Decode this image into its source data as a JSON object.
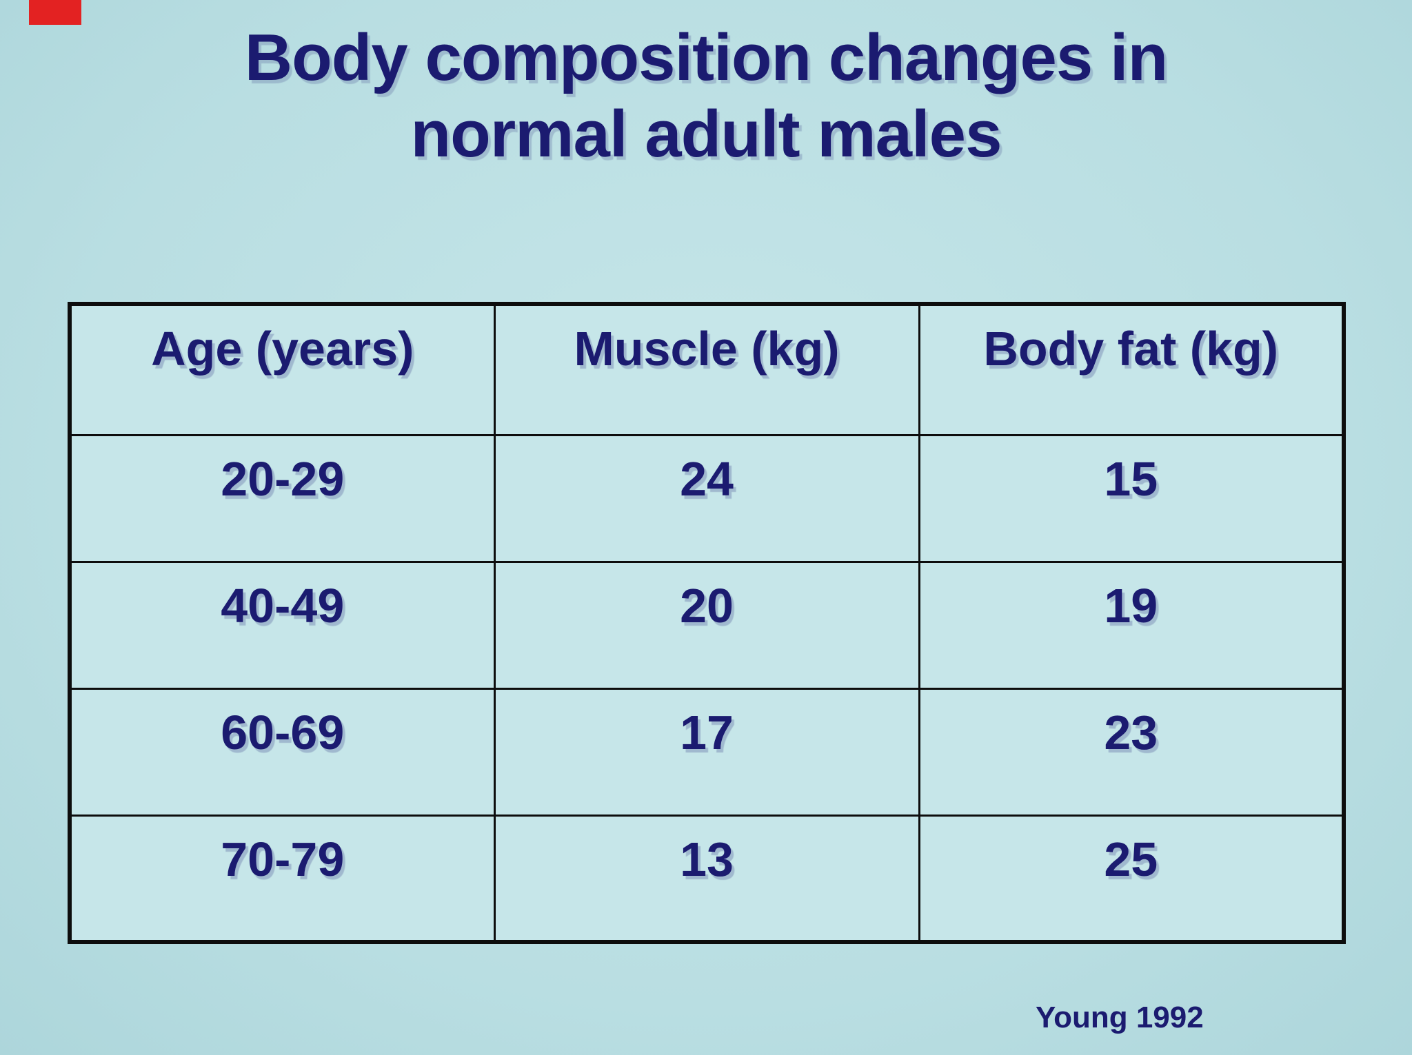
{
  "slide": {
    "title_line1": "Body composition changes in",
    "title_line2": "normal adult males",
    "citation": "Young 1992"
  },
  "colors": {
    "background": "#b9dee2",
    "cell": "#c6e6e9",
    "text": "#1b1b70",
    "border": "#0d0d0d",
    "marker": "#e32222"
  },
  "chart_data": {
    "type": "table",
    "title": "Body composition changes in normal adult males",
    "columns": [
      "Age (years)",
      "Muscle (kg)",
      "Body fat (kg)"
    ],
    "rows": [
      [
        "20-29",
        "24",
        "15"
      ],
      [
        "40-49",
        "20",
        "19"
      ],
      [
        "60-69",
        "17",
        "23"
      ],
      [
        "70-79",
        "13",
        "25"
      ]
    ],
    "source": "Young 1992",
    "layout": {
      "grid": "on",
      "header_row": true,
      "columns_equal_width": true
    }
  }
}
